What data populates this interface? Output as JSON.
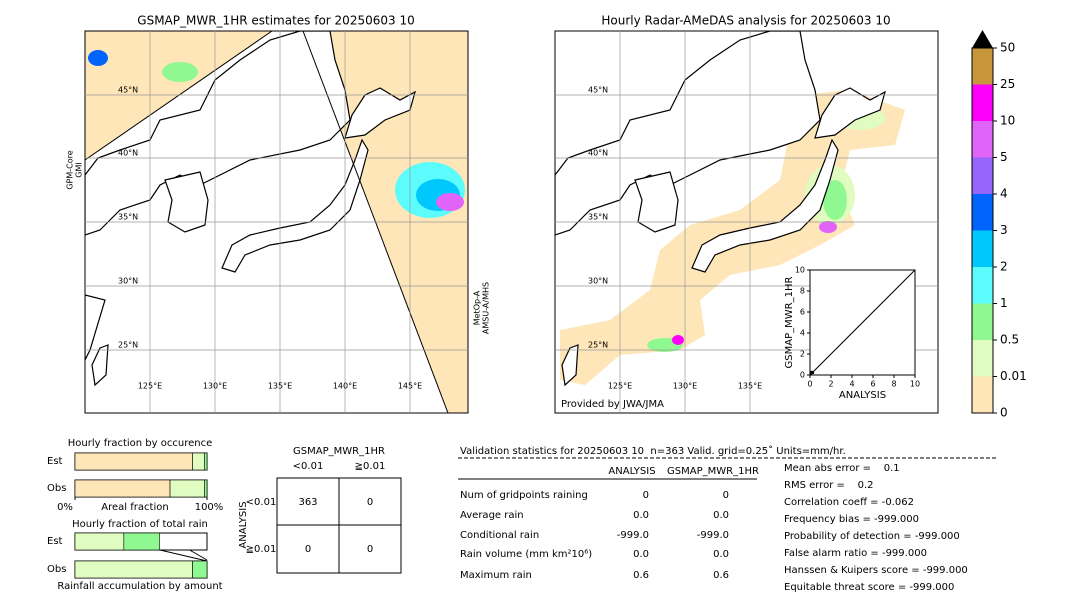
{
  "left_map": {
    "title": "GSMAP_MWR_1HR estimates for 20250603 10",
    "lat_labels": [
      "45°N",
      "40°N",
      "35°N",
      "30°N",
      "25°N"
    ],
    "lon_labels": [
      "125°E",
      "130°E",
      "135°E",
      "140°E",
      "145°E"
    ],
    "left_sensor": [
      "GPM-Core",
      "GMI"
    ],
    "right_sensor": [
      "MetOp-A",
      "AMSU-A/MHS"
    ]
  },
  "right_map": {
    "title": "Hourly Radar-AMeDAS analysis for 20250603 10",
    "lat_labels": [
      "45°N",
      "40°N",
      "35°N",
      "30°N",
      "25°N"
    ],
    "lon_labels": [
      "125°E",
      "130°E",
      "135°E"
    ],
    "credit": "Provided by JWA/JMA"
  },
  "colorbar": {
    "levels": [
      0,
      0.01,
      0.5,
      1,
      2,
      3,
      4,
      5,
      10,
      25,
      50
    ],
    "colors": [
      "#fee6b8",
      "#e0fcc0",
      "#90f890",
      "#5cfcfc",
      "#00c8fc",
      "#0064fc",
      "#9664f8",
      "#e064f8",
      "#fc00fc",
      "#c8963c"
    ]
  },
  "scatter": {
    "xlabel": "ANALYSIS",
    "ylabel": "GSMAP_MWR_1HR",
    "xlim": [
      0,
      10
    ],
    "ylim": [
      0,
      10
    ],
    "xticks": [
      0,
      2,
      4,
      6,
      8,
      10
    ],
    "yticks": [
      0,
      2,
      4,
      6,
      8,
      10
    ]
  },
  "occurrence": {
    "title": "Hourly fraction by occurence",
    "categories": [
      "Est",
      "Obs"
    ],
    "xlabel": "Areal fraction",
    "xlim": [
      0,
      1
    ],
    "xticks": [
      {
        "value": 0,
        "label": "0%"
      },
      {
        "value": 1,
        "label": "100%"
      }
    ],
    "segments": [
      {
        "color": "#fee6b8",
        "values": [
          0.89,
          0.72
        ]
      },
      {
        "color": "#e0fcc0",
        "values": [
          0.09,
          0.26
        ]
      },
      {
        "color": "#90f890",
        "values": [
          0.02,
          0.02
        ]
      }
    ]
  },
  "total": {
    "title": "Hourly fraction of total rain",
    "categories": [
      "Est",
      "Obs"
    ],
    "footer": "Rainfall accumulation by amount",
    "xlim": [
      0,
      1
    ],
    "segments": [
      {
        "color": "#e0fcc0",
        "values": [
          0.37,
          0.89
        ]
      },
      {
        "color": "#90f890",
        "values": [
          0.27,
          0.11
        ]
      }
    ]
  },
  "contingency": {
    "title": "GSMAP_MWR_1HR",
    "col_labels": [
      "<0.01",
      "≧0.01"
    ],
    "row_axis": "ANALYSIS",
    "row_labels": [
      "<0.01",
      "≧0.01"
    ],
    "cells": [
      [
        363,
        0
      ],
      [
        0,
        0
      ]
    ]
  },
  "validation": {
    "header": "Validation statistics for 20250603 10  n=363 Valid. grid=0.25˚ Units=mm/hr.",
    "columns": [
      "ANALYSIS",
      "GSMAP_MWR_1HR"
    ],
    "rows": [
      {
        "label": "Num of gridpoints raining",
        "values": [
          "0",
          "0"
        ]
      },
      {
        "label": "Average rain",
        "values": [
          "0.0",
          "0.0"
        ]
      },
      {
        "label": "Conditional rain",
        "values": [
          "-999.0",
          "-999.0"
        ]
      },
      {
        "label": "Rain volume (mm km²10⁶)",
        "values": [
          "0.0",
          "0.0"
        ]
      },
      {
        "label": "Maximum rain",
        "values": [
          "0.6",
          "0.6"
        ]
      }
    ]
  },
  "scores": [
    "Mean abs error =    0.1",
    "RMS error =    0.2",
    "Correlation coeff = -0.062",
    "Frequency bias = -999.000",
    "Probability of detection = -999.000",
    "False alarm ratio = -999.000",
    "Hanssen & Kuipers score = -999.000",
    "Equitable threat score = -999.000"
  ]
}
